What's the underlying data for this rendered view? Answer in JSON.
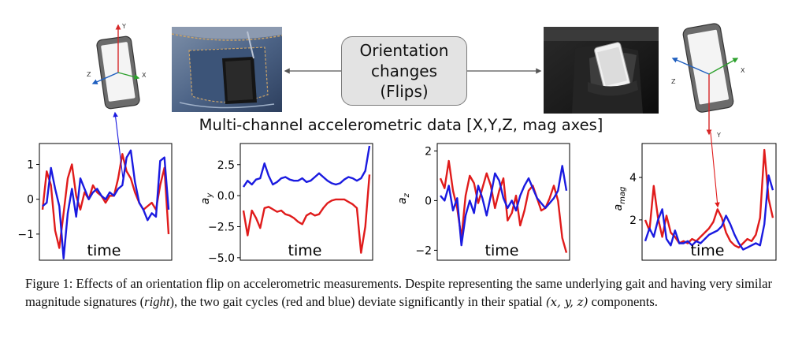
{
  "figure": {
    "orientation_box": {
      "lines": [
        "Orientation",
        "changes",
        "(Flips)"
      ]
    },
    "headline": "Multi-channel accelerometric data [X,Y,Z, mag axes]",
    "phone_left": {
      "axes": {
        "x": "X",
        "y": "Y",
        "z": "Z"
      }
    },
    "phone_right": {
      "axes": {
        "x": "X",
        "y": "Y",
        "z": "Z"
      }
    },
    "colors": {
      "gait_cycle_1": "#e01b1b",
      "gait_cycle_2": "#1a1ae0",
      "axis_x": "#2ca02c",
      "axis_y": "#d62728",
      "axis_z": "#1f5fbf"
    }
  },
  "chart_data": [
    {
      "type": "line",
      "xlabel": "time",
      "ylabel": "",
      "ylim": [
        -1.75,
        1.6
      ],
      "yticks": [
        "1",
        "0",
        "−1"
      ],
      "ytick_values": [
        1,
        0,
        -1
      ],
      "x": [
        0,
        1,
        2,
        3,
        4,
        5,
        6,
        7,
        8,
        9,
        10,
        11,
        12,
        13,
        14,
        15,
        16,
        17,
        18,
        19,
        20,
        21,
        22,
        23,
        24,
        25,
        26,
        27,
        28,
        29,
        30
      ],
      "series": [
        {
          "color": "#e01b1b",
          "values": [
            -0.3,
            0.8,
            0.4,
            -0.9,
            -1.4,
            -0.4,
            0.6,
            1.0,
            0.1,
            -0.3,
            0.2,
            0.0,
            0.4,
            0.2,
            0.1,
            -0.1,
            0.1,
            0.1,
            0.6,
            1.3,
            0.8,
            0.6,
            0.2,
            -0.1,
            -0.3,
            -0.2,
            -0.1,
            -0.3,
            0.4,
            0.9,
            -1.0
          ]
        },
        {
          "color": "#1a1ae0",
          "values": [
            -0.2,
            -0.1,
            0.9,
            0.3,
            -0.2,
            -1.7,
            -0.4,
            0.3,
            -0.5,
            0.6,
            0.3,
            0.0,
            0.2,
            0.3,
            0.1,
            0.0,
            0.2,
            0.1,
            0.3,
            0.4,
            1.2,
            1.4,
            0.5,
            -0.1,
            -0.3,
            -0.6,
            -0.4,
            -0.5,
            1.1,
            1.2,
            -0.3
          ]
        }
      ]
    },
    {
      "type": "line",
      "xlabel": "time",
      "ylabel": "a_y",
      "ylim": [
        -5.2,
        4.2
      ],
      "yticks": [
        "2.5",
        "0.0",
        "−2.5",
        "−5.0"
      ],
      "ytick_values": [
        2.5,
        0.0,
        -2.5,
        -5.0
      ],
      "x": [
        0,
        1,
        2,
        3,
        4,
        5,
        6,
        7,
        8,
        9,
        10,
        11,
        12,
        13,
        14,
        15,
        16,
        17,
        18,
        19,
        20,
        21,
        22,
        23,
        24,
        25,
        26,
        27,
        28,
        29,
        30
      ],
      "series": [
        {
          "color": "#e01b1b",
          "values": [
            -1.2,
            -3.2,
            -1.2,
            -1.8,
            -2.6,
            -1.0,
            -0.9,
            -1.1,
            -1.3,
            -1.2,
            -1.5,
            -1.6,
            -1.8,
            -2.1,
            -2.3,
            -1.6,
            -1.4,
            -1.6,
            -1.5,
            -1.0,
            -0.6,
            -0.4,
            -0.3,
            -0.3,
            -0.3,
            -0.5,
            -0.7,
            -1.0,
            -4.6,
            -2.5,
            1.7
          ]
        },
        {
          "color": "#1a1ae0",
          "values": [
            0.7,
            1.2,
            0.9,
            1.3,
            1.4,
            2.6,
            1.6,
            0.9,
            1.1,
            1.4,
            1.5,
            1.3,
            1.2,
            1.2,
            1.4,
            1.1,
            1.2,
            1.5,
            1.8,
            1.5,
            1.2,
            1.0,
            0.9,
            1.0,
            1.3,
            1.5,
            1.4,
            1.2,
            1.4,
            2.0,
            4.0
          ]
        }
      ]
    },
    {
      "type": "line",
      "xlabel": "time",
      "ylabel": "a_z",
      "ylim": [
        -2.4,
        2.3
      ],
      "yticks": [
        "2",
        "0",
        "−2"
      ],
      "ytick_values": [
        2,
        0,
        -2
      ],
      "x": [
        0,
        1,
        2,
        3,
        4,
        5,
        6,
        7,
        8,
        9,
        10,
        11,
        12,
        13,
        14,
        15,
        16,
        17,
        18,
        19,
        20,
        21,
        22,
        23,
        24,
        25,
        26,
        27,
        28,
        29,
        30
      ],
      "series": [
        {
          "color": "#e01b1b",
          "values": [
            0.9,
            0.5,
            1.6,
            0.4,
            -0.3,
            -1.5,
            0.2,
            1.0,
            0.7,
            -0.1,
            0.5,
            1.1,
            0.6,
            -0.3,
            0.4,
            0.9,
            -0.8,
            -0.5,
            0.2,
            -1.0,
            -0.4,
            0.4,
            0.6,
            0.1,
            -0.4,
            -0.3,
            0.1,
            0.6,
            0.0,
            -1.5,
            -2.1
          ]
        },
        {
          "color": "#1a1ae0",
          "values": [
            0.2,
            0.0,
            0.6,
            -0.4,
            0.1,
            -1.8,
            -0.6,
            0.0,
            -0.5,
            0.6,
            0.1,
            -0.6,
            0.2,
            1.1,
            0.8,
            0.1,
            -0.3,
            0.0,
            -0.4,
            0.2,
            0.6,
            0.9,
            0.5,
            0.1,
            -0.1,
            -0.3,
            -0.1,
            0.1,
            0.4,
            1.4,
            0.4
          ]
        }
      ]
    },
    {
      "type": "line",
      "xlabel": "time",
      "ylabel": "a_mag",
      "ylim": [
        0.1,
        5.6
      ],
      "yticks": [
        "4",
        "2"
      ],
      "ytick_values": [
        4,
        2
      ],
      "x": [
        0,
        1,
        2,
        3,
        4,
        5,
        6,
        7,
        8,
        9,
        10,
        11,
        12,
        13,
        14,
        15,
        16,
        17,
        18,
        19,
        20,
        21,
        22,
        23,
        24,
        25,
        26,
        27,
        28,
        29,
        30
      ],
      "series": [
        {
          "color": "#e01b1b",
          "values": [
            2.0,
            1.5,
            3.6,
            2.1,
            1.2,
            2.2,
            1.4,
            1.2,
            0.9,
            1.0,
            0.9,
            1.1,
            1.0,
            1.2,
            1.4,
            1.6,
            1.9,
            2.5,
            2.1,
            1.4,
            1.0,
            0.8,
            0.7,
            0.9,
            1.1,
            1.0,
            1.3,
            2.1,
            5.3,
            3.0,
            2.1
          ]
        },
        {
          "color": "#1a1ae0",
          "values": [
            1.0,
            1.6,
            1.2,
            2.0,
            2.5,
            1.1,
            0.8,
            1.5,
            0.9,
            0.9,
            1.0,
            0.8,
            1.0,
            0.9,
            1.1,
            1.3,
            1.4,
            1.5,
            1.7,
            2.2,
            1.8,
            1.3,
            0.9,
            0.6,
            0.7,
            0.8,
            0.9,
            0.8,
            1.8,
            4.1,
            3.4
          ]
        }
      ]
    }
  ],
  "caption": {
    "part1": "Figure 1: Effects of an orientation flip on accelerometric measurements. Despite representing the same underlying gait and having very similar magnitude signatures (",
    "italic": "right",
    "part2": "), the two gait cycles (red and blue) deviate significantly in their spatial ",
    "math": "(x, y, z)",
    "part3": " components."
  }
}
